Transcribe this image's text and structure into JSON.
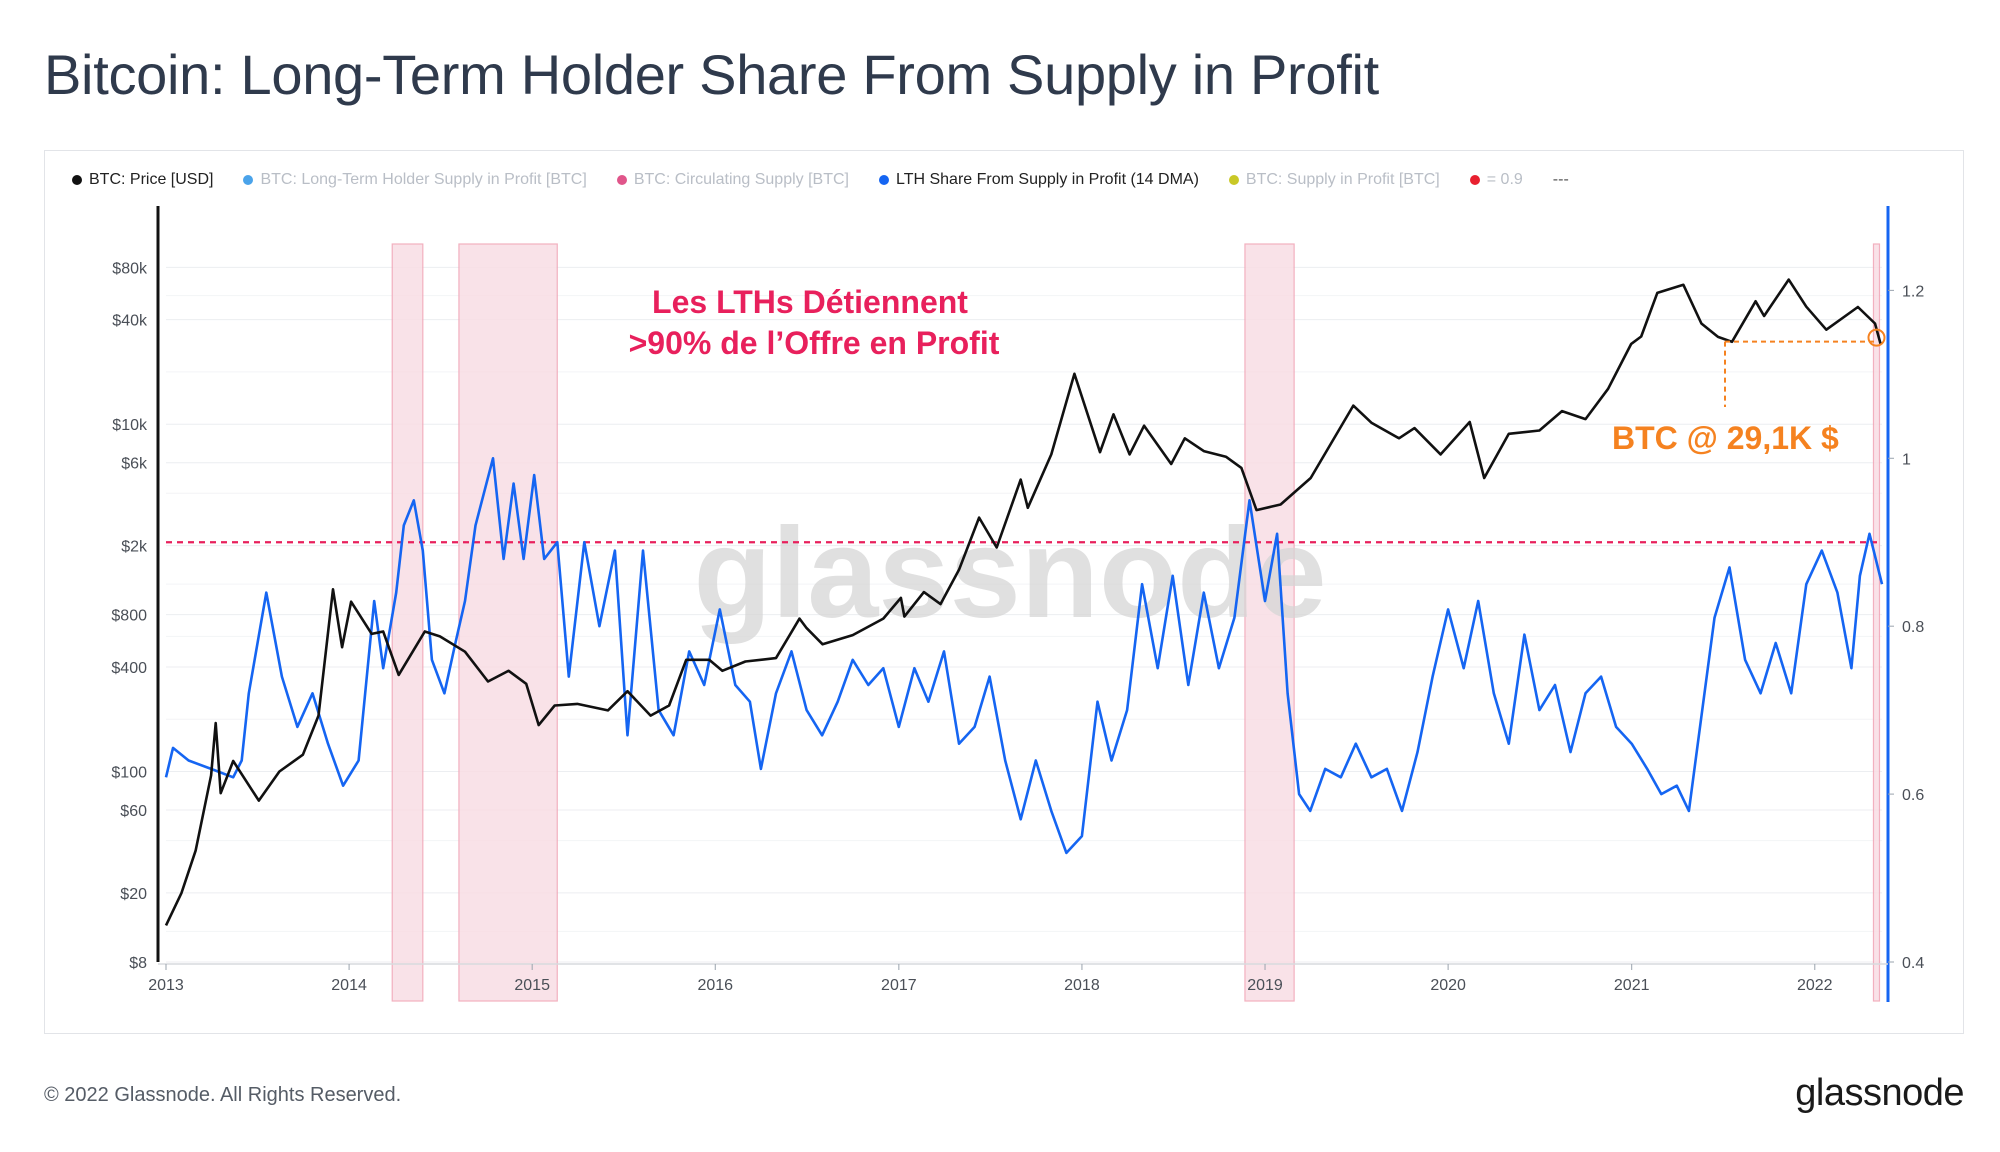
{
  "title": "Bitcoin: Long-Term Holder Share From Supply in Profit",
  "legend": [
    {
      "label": "BTC: Price [USD]",
      "dot": "#111111",
      "text_color": "#222222"
    },
    {
      "label": "BTC: Long-Term Holder Supply in Profit [BTC]",
      "dot": "#4aa3ea",
      "text_color": "#b9bec6"
    },
    {
      "label": "BTC: Circulating Supply [BTC]",
      "dot": "#e0558a",
      "text_color": "#b9bec6"
    },
    {
      "label": "LTH Share From Supply in Profit (14 DMA)",
      "dot": "#1565f2",
      "text_color": "#222222"
    },
    {
      "label": "BTC: Supply in Profit [BTC]",
      "dot": "#c9c826",
      "text_color": "#b9bec6"
    },
    {
      "label": "= 0.9",
      "dot": "#e8202f",
      "text_color": "#b9bec6"
    },
    {
      "label": "---",
      "dot": "",
      "text_color": "#555555"
    }
  ],
  "watermark": "glassnode",
  "annotations": {
    "lth_note_line1": "Les LTHs Détiennent",
    "lth_note_line2": ">90% de l’Offre en Profit",
    "btc_note": "BTC @ 29,1K $"
  },
  "colors": {
    "price": "#111111",
    "lth_share": "#1565f2",
    "threshold": "#e8205c",
    "highlight_fill": "#f9dde4",
    "highlight_stroke": "#f0a3b5",
    "annotation_pink": "#e8205c",
    "annotation_orange": "#f58220",
    "right_axis": "#1565f2"
  },
  "footer": {
    "copyright": "© 2022 Glassnode. All Rights Reserved.",
    "logo": "glassnode"
  },
  "chart_data": {
    "type": "line",
    "x_axis": {
      "ticks": [
        "2013",
        "2014",
        "2015",
        "2016",
        "2017",
        "2018",
        "2019",
        "2020",
        "2021",
        "2022"
      ],
      "range": [
        "2013-01-01",
        "2022-05-15"
      ]
    },
    "y_left": {
      "scale": "log",
      "ticks": [
        {
          "label": "$8",
          "value": 8
        },
        {
          "label": "$20",
          "value": 20
        },
        {
          "label": "$60",
          "value": 60
        },
        {
          "label": "$100",
          "value": 100
        },
        {
          "label": "$400",
          "value": 400
        },
        {
          "label": "$800",
          "value": 800
        },
        {
          "label": "$2k",
          "value": 2000
        },
        {
          "label": "$6k",
          "value": 6000
        },
        {
          "label": "$10k",
          "value": 10000
        },
        {
          "label": "$40k",
          "value": 40000
        },
        {
          "label": "$80k",
          "value": 80000
        }
      ]
    },
    "y_right": {
      "scale": "linear",
      "range": [
        0.4,
        1.2
      ],
      "ticks": [
        {
          "label": "0.4",
          "value": 0.4
        },
        {
          "label": "0.6",
          "value": 0.6
        },
        {
          "label": "0.8",
          "value": 0.8
        },
        {
          "label": "1",
          "value": 1.0
        },
        {
          "label": "1.2",
          "value": 1.2
        }
      ]
    },
    "threshold": 0.9,
    "highlight_ranges": [
      [
        "2014-03-28",
        "2014-05-28"
      ],
      [
        "2014-08-08",
        "2015-02-20"
      ],
      [
        "2018-11-22",
        "2019-02-28"
      ],
      [
        "2022-04-28",
        "2022-05-10"
      ]
    ],
    "series": [
      {
        "name": "BTC: Price [USD]",
        "axis": "left",
        "points": [
          [
            "2013-01-01",
            13
          ],
          [
            "2013-02-01",
            20
          ],
          [
            "2013-03-01",
            35
          ],
          [
            "2013-04-01",
            95
          ],
          [
            "2013-04-10",
            190
          ],
          [
            "2013-04-20",
            75
          ],
          [
            "2013-05-15",
            115
          ],
          [
            "2013-07-05",
            68
          ],
          [
            "2013-08-15",
            100
          ],
          [
            "2013-10-01",
            125
          ],
          [
            "2013-11-01",
            210
          ],
          [
            "2013-11-30",
            1120
          ],
          [
            "2013-12-18",
            520
          ],
          [
            "2014-01-05",
            950
          ],
          [
            "2014-02-15",
            620
          ],
          [
            "2014-03-10",
            640
          ],
          [
            "2014-04-10",
            360
          ],
          [
            "2014-06-01",
            640
          ],
          [
            "2014-07-01",
            600
          ],
          [
            "2014-08-20",
            490
          ],
          [
            "2014-10-05",
            330
          ],
          [
            "2014-11-15",
            380
          ],
          [
            "2014-12-20",
            320
          ],
          [
            "2015-01-14",
            185
          ],
          [
            "2015-02-15",
            240
          ],
          [
            "2015-04-01",
            245
          ],
          [
            "2015-06-01",
            225
          ],
          [
            "2015-07-10",
            290
          ],
          [
            "2015-08-25",
            210
          ],
          [
            "2015-10-01",
            240
          ],
          [
            "2015-11-04",
            440
          ],
          [
            "2015-12-20",
            440
          ],
          [
            "2016-01-15",
            380
          ],
          [
            "2016-03-01",
            430
          ],
          [
            "2016-05-01",
            450
          ],
          [
            "2016-06-17",
            760
          ],
          [
            "2016-07-01",
            670
          ],
          [
            "2016-08-02",
            540
          ],
          [
            "2016-10-01",
            610
          ],
          [
            "2016-12-01",
            760
          ],
          [
            "2017-01-05",
            1000
          ],
          [
            "2017-01-12",
            780
          ],
          [
            "2017-02-20",
            1080
          ],
          [
            "2017-03-25",
            920
          ],
          [
            "2017-05-01",
            1450
          ],
          [
            "2017-06-10",
            2900
          ],
          [
            "2017-07-15",
            1950
          ],
          [
            "2017-09-01",
            4800
          ],
          [
            "2017-09-15",
            3300
          ],
          [
            "2017-11-01",
            6700
          ],
          [
            "2017-12-17",
            19500
          ],
          [
            "2018-02-06",
            6900
          ],
          [
            "2018-03-05",
            11400
          ],
          [
            "2018-04-06",
            6700
          ],
          [
            "2018-05-05",
            9800
          ],
          [
            "2018-06-28",
            5900
          ],
          [
            "2018-07-25",
            8300
          ],
          [
            "2018-09-01",
            7000
          ],
          [
            "2018-10-15",
            6500
          ],
          [
            "2018-11-15",
            5600
          ],
          [
            "2018-12-15",
            3200
          ],
          [
            "2019-02-01",
            3450
          ],
          [
            "2019-04-02",
            4900
          ],
          [
            "2019-06-26",
            12800
          ],
          [
            "2019-08-01",
            10200
          ],
          [
            "2019-09-25",
            8300
          ],
          [
            "2019-10-26",
            9500
          ],
          [
            "2019-12-17",
            6700
          ],
          [
            "2020-02-13",
            10300
          ],
          [
            "2020-03-13",
            4900
          ],
          [
            "2020-05-01",
            8800
          ],
          [
            "2020-07-01",
            9200
          ],
          [
            "2020-08-15",
            11900
          ],
          [
            "2020-10-01",
            10700
          ],
          [
            "2020-11-15",
            16000
          ],
          [
            "2020-12-31",
            29000
          ],
          [
            "2021-01-20",
            32000
          ],
          [
            "2021-02-21",
            57000
          ],
          [
            "2021-04-14",
            63500
          ],
          [
            "2021-05-20",
            38000
          ],
          [
            "2021-06-22",
            31800
          ],
          [
            "2021-07-20",
            29800
          ],
          [
            "2021-09-05",
            51000
          ],
          [
            "2021-09-22",
            42000
          ],
          [
            "2021-11-10",
            68000
          ],
          [
            "2021-12-15",
            47500
          ],
          [
            "2022-01-24",
            35000
          ],
          [
            "2022-03-28",
            47300
          ],
          [
            "2022-05-01",
            38000
          ],
          [
            "2022-05-12",
            29100
          ]
        ]
      },
      {
        "name": "LTH Share From Supply in Profit (14 DMA)",
        "axis": "right",
        "points": [
          [
            "2013-01-01",
            0.62
          ],
          [
            "2013-01-15",
            0.655
          ],
          [
            "2013-02-15",
            0.64
          ],
          [
            "2013-04-01",
            0.63
          ],
          [
            "2013-05-15",
            0.62
          ],
          [
            "2013-06-01",
            0.64
          ],
          [
            "2013-06-15",
            0.72
          ],
          [
            "2013-07-20",
            0.84
          ],
          [
            "2013-08-20",
            0.74
          ],
          [
            "2013-09-20",
            0.68
          ],
          [
            "2013-10-20",
            0.72
          ],
          [
            "2013-11-20",
            0.66
          ],
          [
            "2013-12-20",
            0.61
          ],
          [
            "2014-01-20",
            0.64
          ],
          [
            "2014-02-20",
            0.83
          ],
          [
            "2014-03-10",
            0.75
          ],
          [
            "2014-04-05",
            0.84
          ],
          [
            "2014-04-20",
            0.92
          ],
          [
            "2014-05-10",
            0.95
          ],
          [
            "2014-05-28",
            0.89
          ],
          [
            "2014-06-15",
            0.76
          ],
          [
            "2014-07-10",
            0.72
          ],
          [
            "2014-08-01",
            0.78
          ],
          [
            "2014-08-20",
            0.83
          ],
          [
            "2014-09-10",
            0.92
          ],
          [
            "2014-10-15",
            1.0
          ],
          [
            "2014-11-05",
            0.88
          ],
          [
            "2014-11-25",
            0.97
          ],
          [
            "2014-12-15",
            0.88
          ],
          [
            "2015-01-05",
            0.98
          ],
          [
            "2015-01-25",
            0.88
          ],
          [
            "2015-02-20",
            0.9
          ],
          [
            "2015-03-15",
            0.74
          ],
          [
            "2015-04-15",
            0.9
          ],
          [
            "2015-05-15",
            0.8
          ],
          [
            "2015-06-15",
            0.89
          ],
          [
            "2015-07-10",
            0.67
          ],
          [
            "2015-08-10",
            0.89
          ],
          [
            "2015-09-10",
            0.7
          ],
          [
            "2015-10-10",
            0.67
          ],
          [
            "2015-11-10",
            0.77
          ],
          [
            "2015-12-10",
            0.73
          ],
          [
            "2016-01-10",
            0.82
          ],
          [
            "2016-02-10",
            0.73
          ],
          [
            "2016-03-10",
            0.71
          ],
          [
            "2016-04-01",
            0.63
          ],
          [
            "2016-05-01",
            0.72
          ],
          [
            "2016-06-01",
            0.77
          ],
          [
            "2016-07-01",
            0.7
          ],
          [
            "2016-08-01",
            0.67
          ],
          [
            "2016-09-01",
            0.71
          ],
          [
            "2016-10-01",
            0.76
          ],
          [
            "2016-11-01",
            0.73
          ],
          [
            "2016-12-01",
            0.75
          ],
          [
            "2017-01-01",
            0.68
          ],
          [
            "2017-02-01",
            0.75
          ],
          [
            "2017-03-01",
            0.71
          ],
          [
            "2017-04-01",
            0.77
          ],
          [
            "2017-05-01",
            0.66
          ],
          [
            "2017-06-01",
            0.68
          ],
          [
            "2017-07-01",
            0.74
          ],
          [
            "2017-08-01",
            0.64
          ],
          [
            "2017-09-01",
            0.57
          ],
          [
            "2017-10-01",
            0.64
          ],
          [
            "2017-11-01",
            0.58
          ],
          [
            "2017-12-01",
            0.53
          ],
          [
            "2018-01-01",
            0.55
          ],
          [
            "2018-02-01",
            0.71
          ],
          [
            "2018-03-01",
            0.64
          ],
          [
            "2018-04-01",
            0.7
          ],
          [
            "2018-05-01",
            0.85
          ],
          [
            "2018-06-01",
            0.75
          ],
          [
            "2018-07-01",
            0.86
          ],
          [
            "2018-08-01",
            0.73
          ],
          [
            "2018-09-01",
            0.84
          ],
          [
            "2018-10-01",
            0.75
          ],
          [
            "2018-11-01",
            0.81
          ],
          [
            "2018-12-01",
            0.95
          ],
          [
            "2019-01-01",
            0.83
          ],
          [
            "2019-01-25",
            0.91
          ],
          [
            "2019-02-15",
            0.72
          ],
          [
            "2019-03-10",
            0.6
          ],
          [
            "2019-04-01",
            0.58
          ],
          [
            "2019-05-01",
            0.63
          ],
          [
            "2019-06-01",
            0.62
          ],
          [
            "2019-07-01",
            0.66
          ],
          [
            "2019-08-01",
            0.62
          ],
          [
            "2019-09-01",
            0.63
          ],
          [
            "2019-10-01",
            0.58
          ],
          [
            "2019-11-01",
            0.65
          ],
          [
            "2019-12-01",
            0.74
          ],
          [
            "2020-01-01",
            0.82
          ],
          [
            "2020-02-01",
            0.75
          ],
          [
            "2020-03-01",
            0.83
          ],
          [
            "2020-04-01",
            0.72
          ],
          [
            "2020-05-01",
            0.66
          ],
          [
            "2020-06-01",
            0.79
          ],
          [
            "2020-07-01",
            0.7
          ],
          [
            "2020-08-01",
            0.73
          ],
          [
            "2020-09-01",
            0.65
          ],
          [
            "2020-10-01",
            0.72
          ],
          [
            "2020-11-01",
            0.74
          ],
          [
            "2020-12-01",
            0.68
          ],
          [
            "2021-01-01",
            0.66
          ],
          [
            "2021-02-01",
            0.63
          ],
          [
            "2021-03-01",
            0.6
          ],
          [
            "2021-04-01",
            0.61
          ],
          [
            "2021-04-25",
            0.58
          ],
          [
            "2021-05-15",
            0.67
          ],
          [
            "2021-06-15",
            0.81
          ],
          [
            "2021-07-15",
            0.87
          ],
          [
            "2021-08-15",
            0.76
          ],
          [
            "2021-09-15",
            0.72
          ],
          [
            "2021-10-15",
            0.78
          ],
          [
            "2021-11-15",
            0.72
          ],
          [
            "2021-12-15",
            0.85
          ],
          [
            "2022-01-15",
            0.89
          ],
          [
            "2022-02-15",
            0.84
          ],
          [
            "2022-03-15",
            0.75
          ],
          [
            "2022-04-01",
            0.86
          ],
          [
            "2022-04-20",
            0.91
          ],
          [
            "2022-05-15",
            0.85
          ]
        ]
      }
    ]
  }
}
